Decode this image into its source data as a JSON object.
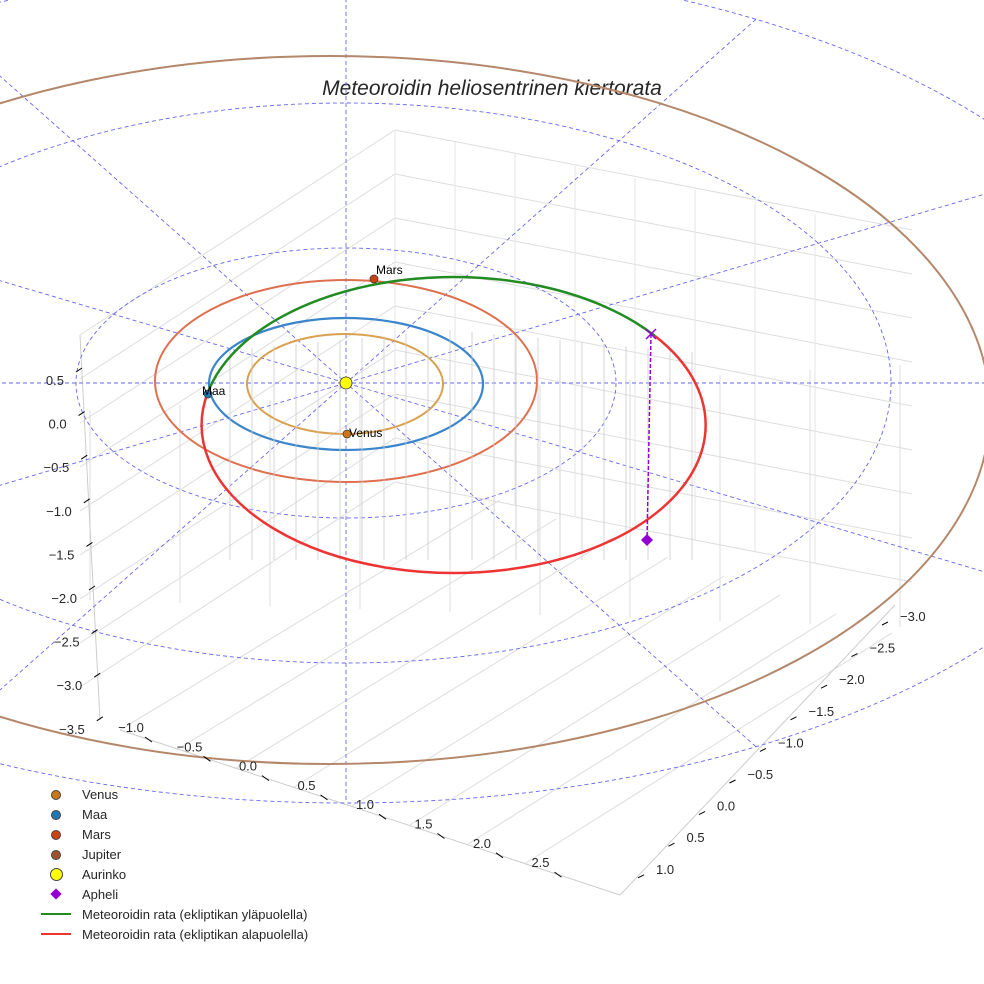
{
  "chart_data": {
    "type": "line",
    "projection": "3d",
    "title": "Meteoroidin heliosentrinen kiertorata",
    "x_ticks": [
      "−1.0",
      "−0.5",
      "0.0",
      "0.5",
      "1.0",
      "1.5",
      "2.0",
      "2.5"
    ],
    "y_ticks": [
      "−3.0",
      "−2.5",
      "−2.0",
      "−1.5",
      "−1.0",
      "−0.5",
      "0.0",
      "0.5",
      "1.0"
    ],
    "z_ticks": [
      "0.5",
      "0.0",
      "−0.5",
      "−1.0",
      "−1.5",
      "−2.0",
      "−2.5",
      "−3.0",
      "−3.5"
    ],
    "planet_labels": [
      "Mars",
      "Maa",
      "Venus"
    ],
    "legend": [
      {
        "label": "Venus",
        "type": "dot",
        "color": "#c9771a"
      },
      {
        "label": "Maa",
        "type": "dot",
        "color": "#1f77b4"
      },
      {
        "label": "Mars",
        "type": "dot",
        "color": "#cc4411"
      },
      {
        "label": "Jupiter",
        "type": "dot",
        "color": "#a0522d"
      },
      {
        "label": "Aurinko",
        "type": "sun",
        "color": "#ffff00"
      },
      {
        "label": "Apheli",
        "type": "diamond",
        "color": "#9400d3"
      },
      {
        "label": "Meteoroidin rata (ekliptikan yläpuolella)",
        "type": "line",
        "color": "#228b22"
      },
      {
        "label": "Meteoroidin rata (ekliptikan alapuolella)",
        "type": "line",
        "color": "#ee3333"
      }
    ],
    "orbit_colors": {
      "venus": "#d9a050",
      "maa": "#3a85cc",
      "mars": "#de7050",
      "jupiter": "#b5876a",
      "above": "#228b22",
      "below": "#ee3333",
      "grid": "#6666ee"
    },
    "legend_position": "lower-left"
  }
}
